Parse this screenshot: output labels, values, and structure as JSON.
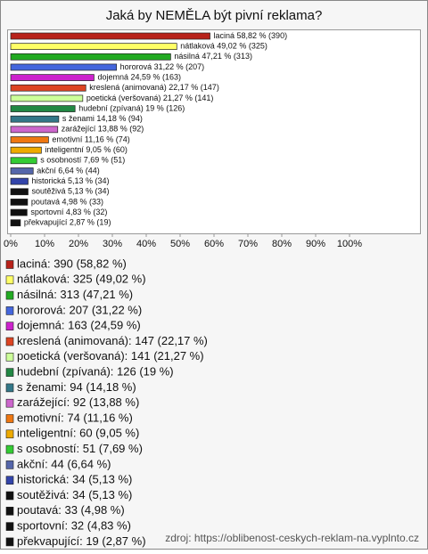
{
  "chart_data": {
    "type": "hbar",
    "title": "Jaká by NEMĚLA být pivní reklama?",
    "values": [
      58.82,
      49.02,
      47.21,
      31.22,
      24.59,
      22.17,
      21.27,
      19,
      14.18,
      13.88,
      11.16,
      9.05,
      7.69,
      6.64,
      5.13,
      5.13,
      4.98,
      4.83,
      2.87
    ],
    "value_labels": [
      "laciná 58,82 % (390)",
      "nátlaková 49,02 % (325)",
      "násilná 47,21 % (313)",
      "hororová 31,22 % (207)",
      "dojemná 24,59 % (163)",
      "kreslená (animovaná) 22,17 % (147)",
      "poetická (veršovaná) 21,27 % (141)",
      "hudební (zpívaná) 19 % (126)",
      "s ženami 14,18 % (94)",
      "zarážející 13,88 % (92)",
      "emotivní 11,16 % (74)",
      "inteligentní 9,05 % (60)",
      "s osobností 7,69 % (51)",
      "akční 6,64 % (44)",
      "historická 5,13 % (34)",
      "soutěživá 5,13 % (34)",
      "poutavá 4,98 % (33)",
      "sportovní 4,83 % (32)",
      "překvapující 2,87 % (19)"
    ],
    "legend_labels": [
      "laciná: 390 (58,82 %)",
      "nátlaková: 325 (49,02 %)",
      "násilná: 313 (47,21 %)",
      "hororová: 207 (31,22 %)",
      "dojemná: 163 (24,59 %)",
      "kreslená (animovaná): 147 (22,17 %)",
      "poetická (veršovaná): 141 (21,27 %)",
      "hudební (zpívaná): 126 (19 %)",
      "s ženami: 94 (14,18 %)",
      "zarážející: 92 (13,88 %)",
      "emotivní: 74 (11,16 %)",
      "inteligentní: 60 (9,05 %)",
      "s osobností: 51 (7,69 %)",
      "akční: 44 (6,64 %)",
      "historická: 34 (5,13 %)",
      "soutěživá: 34 (5,13 %)",
      "poutavá: 33 (4,98 %)",
      "sportovní: 32 (4,83 %)",
      "překvapující: 19 (2,87 %)"
    ],
    "colors": [
      "#b8221a",
      "#ffff66",
      "#22aa22",
      "#4466dd",
      "#cc22cc",
      "#dd4422",
      "#ccff99",
      "#228844",
      "#337788",
      "#cc66cc",
      "#ee7711",
      "#eeaa00",
      "#33cc33",
      "#5566aa",
      "#3344aa",
      "#111111",
      "#111111",
      "#111111",
      "#111111"
    ],
    "xlim": [
      0,
      100
    ],
    "xticks": [
      {
        "value": 0,
        "label": "0%"
      },
      {
        "value": 10,
        "label": "10%"
      },
      {
        "value": 20,
        "label": "20%"
      },
      {
        "value": 30,
        "label": "30%"
      },
      {
        "value": 40,
        "label": "40%"
      },
      {
        "value": 50,
        "label": "50%"
      },
      {
        "value": 60,
        "label": "60%"
      },
      {
        "value": 70,
        "label": "70%"
      },
      {
        "value": 80,
        "label": "80%"
      },
      {
        "value": 90,
        "label": "90%"
      },
      {
        "value": 100,
        "label": "100%"
      }
    ],
    "source": "zdroj: https://oblibenost-ceskych-reklam-na.vyplnto.cz"
  }
}
